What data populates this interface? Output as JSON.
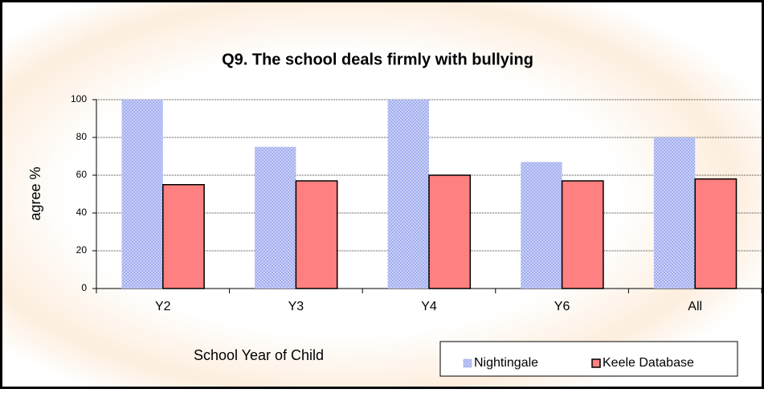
{
  "chart_data": {
    "type": "bar",
    "title": "Q9. The school deals firmly with bullying",
    "xlabel": "School Year of Child",
    "ylabel": "agree %",
    "categories": [
      "Y2",
      "Y3",
      "Y4",
      "Y6",
      "All"
    ],
    "series": [
      {
        "name": "Nightingale",
        "color": "#aab6f4",
        "values": [
          100,
          75,
          100,
          67,
          80
        ]
      },
      {
        "name": "Keele Database",
        "color": "#ff8080",
        "values": [
          55,
          57,
          60,
          57,
          58
        ]
      }
    ],
    "ylim": [
      0,
      100
    ],
    "yticks": [
      0,
      20,
      40,
      60,
      80,
      100
    ],
    "grid": true,
    "legend": "bottom-right"
  }
}
